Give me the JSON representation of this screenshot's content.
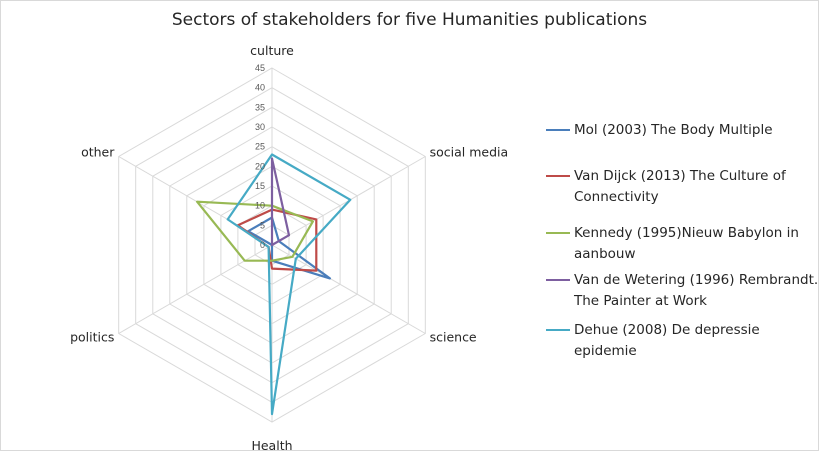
{
  "chart_data": {
    "type": "radar",
    "title": "Sectors of stakeholders for five Humanities publications",
    "categories": [
      "culture",
      "social media",
      "science",
      "Health",
      "politics",
      "other"
    ],
    "rlim": [
      0,
      45
    ],
    "ticks": [
      "0",
      "5",
      "10",
      "15",
      "20",
      "25",
      "30",
      "35",
      "40",
      "45"
    ],
    "grid": true,
    "legend_position": "right",
    "series": [
      {
        "name": "Mol  (2003) The Body Multiple",
        "color": "#4a7ebb",
        "values": [
          7,
          2,
          17,
          4,
          0,
          7
        ]
      },
      {
        "name": "Van Dijck (2013) The Culture of Connectivity",
        "color": "#be4b48",
        "values": [
          9,
          13,
          13,
          6,
          1,
          10
        ]
      },
      {
        "name": " Kennedy (1995)Nieuw Babylon in aanbouw",
        "color": "#98b954",
        "values": [
          10,
          12,
          6,
          4,
          8,
          22
        ]
      },
      {
        "name": "Van de Wetering (1996) Rembrandt. The Painter at Work",
        "color": "#7d5fa0",
        "values": [
          22,
          5,
          0,
          0,
          0,
          0
        ]
      },
      {
        "name": "Dehue (2008) De depressie epidemie",
        "color": "#46aac5",
        "values": [
          23,
          23,
          7,
          43,
          1,
          13
        ]
      }
    ]
  }
}
